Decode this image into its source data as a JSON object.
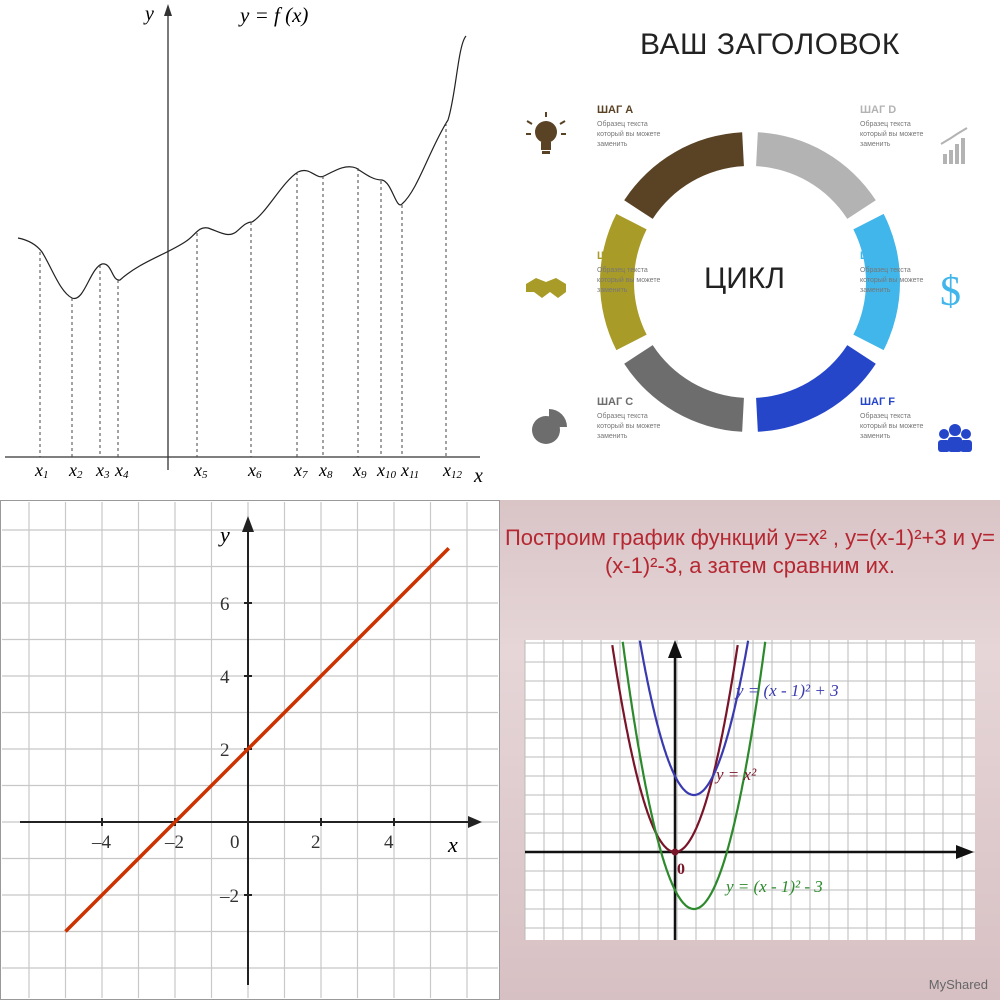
{
  "panels": {
    "top_left": {
      "function_label": "y = f (x)",
      "axis_y": "y",
      "axis_x": "x",
      "x_points": [
        "x1",
        "x2",
        "x3",
        "x4",
        "x5",
        "x6",
        "x7",
        "x8",
        "x9",
        "x10",
        "x11",
        "x12"
      ]
    },
    "top_right": {
      "title": "ВАШ ЗАГОЛОВОК",
      "center": "ЦИКЛ",
      "steps": [
        {
          "label": "ШАГ A",
          "text": "Образец текста который вы можете заменить",
          "color": "#5a4325"
        },
        {
          "label": "ШАГ B",
          "text": "Образец текста который вы можете заменить",
          "color": "#a99b27"
        },
        {
          "label": "ШАГ C",
          "text": "Образец текста который вы можете заменить",
          "color": "#6d6d6d"
        },
        {
          "label": "ШАГ D",
          "text": "Образец текста который вы можете заменить",
          "color": "#b3b3b3"
        },
        {
          "label": "ШАГ E",
          "text": "Образец текста который вы можете заменить",
          "color": "#40b6ea"
        },
        {
          "label": "ШАГ F",
          "text": "Образец текста который вы можете заменить",
          "color": "#2646c9"
        }
      ],
      "icons": [
        "bulb-icon",
        "handshake-icon",
        "pie-icon",
        "bar-chart-icon",
        "dollar-icon",
        "people-icon"
      ]
    },
    "bottom_left": {
      "line_color": "#cc3300"
    },
    "bottom_right": {
      "title": "Построим график функций y=x² , y=(x-1)²+3 и y=(x-1)²-3, а затем сравним их.",
      "origin": "0",
      "watermark": "MyShared"
    }
  },
  "chart_data": [
    {
      "type": "line",
      "title": "y = f (x)",
      "xlabel": "x",
      "ylabel": "y",
      "x_markers": [
        "x1",
        "x2",
        "x3",
        "x4",
        "x5",
        "x6",
        "x7",
        "x8",
        "x9",
        "x10",
        "x11",
        "x12"
      ],
      "grid": false
    },
    {
      "type": "line",
      "xlabel": "x",
      "ylabel": "y",
      "x": [
        -5,
        5.5
      ],
      "series": [
        {
          "values": [
            -3,
            7.5
          ]
        }
      ],
      "xticks": [
        "–4",
        "–2",
        "0",
        "2",
        "4"
      ],
      "yticks": [
        "–2",
        "2",
        "4",
        "6"
      ],
      "xlim": [
        -6.5,
        6.8
      ],
      "ylim": [
        -4.5,
        8.5
      ],
      "grid": true
    },
    {
      "type": "line",
      "xlim": [
        -4,
        8
      ],
      "ylim": [
        -5,
        11
      ],
      "grid": true,
      "series": [
        {
          "name": "y = x²",
          "color": "#7a1428",
          "formula": "x^2"
        },
        {
          "name": "y = (x - 1)² + 3",
          "color": "#3a3ab0",
          "formula": "(x-1)^2+3"
        },
        {
          "name": "y = (x - 1)² - 3",
          "color": "#2c8a2c",
          "formula": "(x-1)^2-3"
        }
      ],
      "origin_label": "0"
    }
  ]
}
